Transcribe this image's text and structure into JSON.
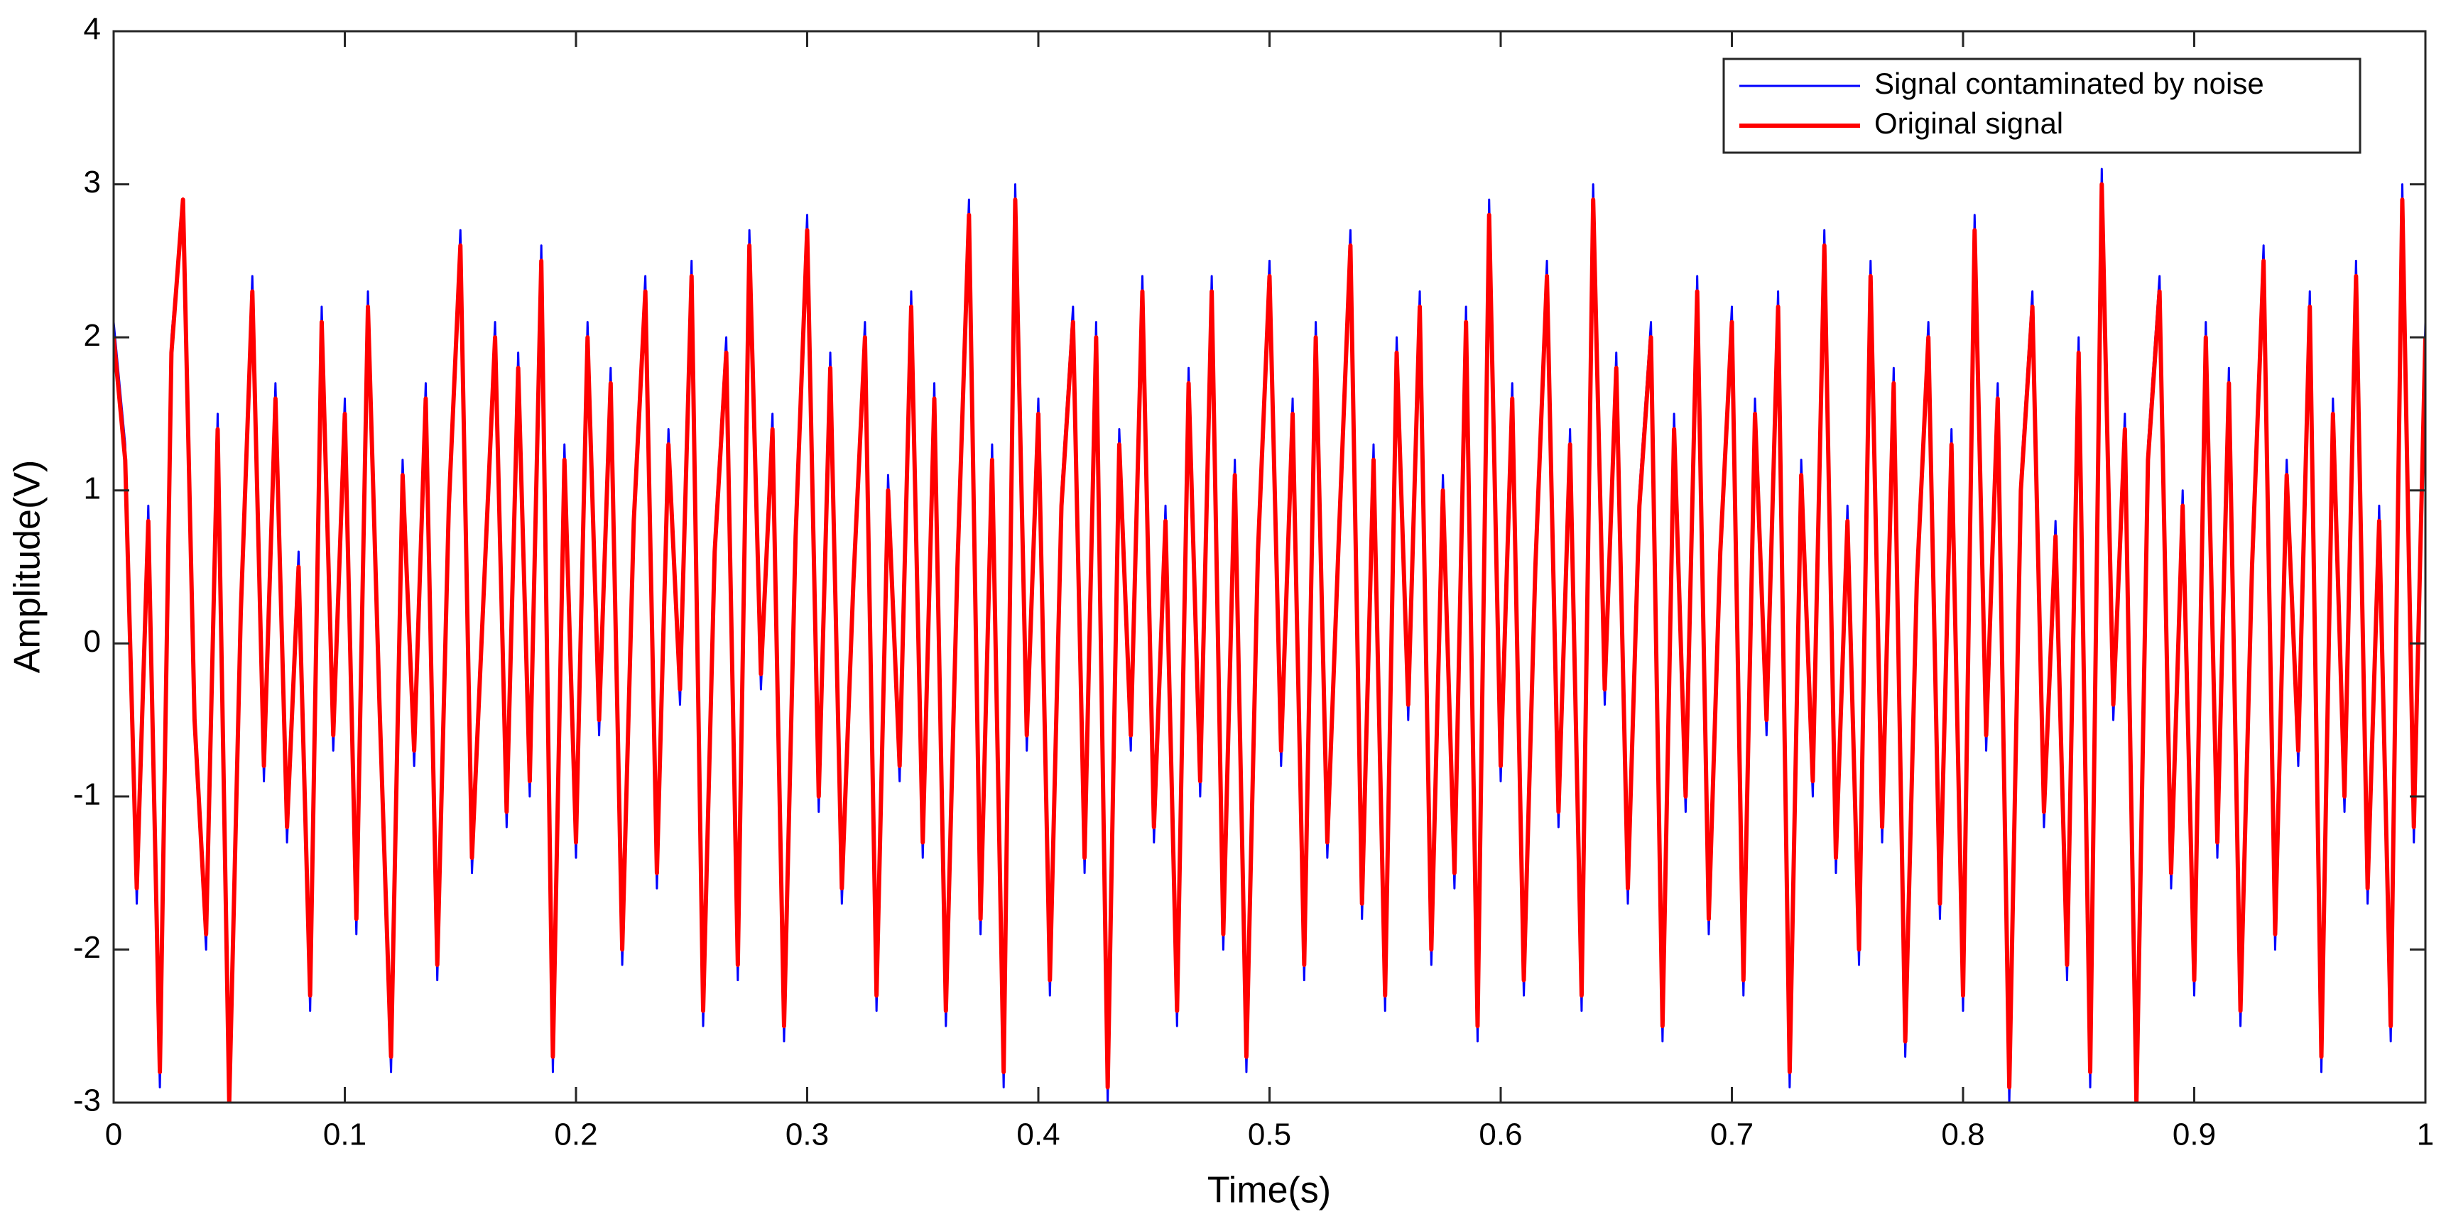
{
  "chart_data": {
    "type": "line",
    "xlabel": "Time(s)",
    "ylabel": "Amplitude(V)",
    "xlim": [
      0,
      1
    ],
    "ylim": [
      -3,
      4
    ],
    "xticks": [
      0,
      0.1,
      0.2,
      0.3,
      0.4,
      0.5,
      0.6,
      0.7,
      0.8,
      0.9,
      1
    ],
    "yticks": [
      -3,
      -2,
      -1,
      0,
      1,
      2,
      3,
      4
    ],
    "grid": false,
    "legend": "upper right",
    "x": [
      0,
      0.005,
      0.01,
      0.015,
      0.02,
      0.025,
      0.03,
      0.035,
      0.04,
      0.045,
      0.05,
      0.055,
      0.06,
      0.065,
      0.07,
      0.075,
      0.08,
      0.085,
      0.09,
      0.095,
      0.1,
      0.105,
      0.11,
      0.115,
      0.12,
      0.125,
      0.13,
      0.135,
      0.14,
      0.145,
      0.15,
      0.155,
      0.16,
      0.165,
      0.17,
      0.175,
      0.18,
      0.185,
      0.19,
      0.195,
      0.2,
      0.205,
      0.21,
      0.215,
      0.22,
      0.225,
      0.23,
      0.235,
      0.24,
      0.245,
      0.25,
      0.255,
      0.26,
      0.265,
      0.27,
      0.275,
      0.28,
      0.285,
      0.29,
      0.295,
      0.3,
      0.305,
      0.31,
      0.315,
      0.32,
      0.325,
      0.33,
      0.335,
      0.34,
      0.345,
      0.35,
      0.355,
      0.36,
      0.365,
      0.37,
      0.375,
      0.38,
      0.385,
      0.39,
      0.395,
      0.4,
      0.405,
      0.41,
      0.415,
      0.42,
      0.425,
      0.43,
      0.435,
      0.44,
      0.445,
      0.45,
      0.455,
      0.46,
      0.465,
      0.47,
      0.475,
      0.48,
      0.485,
      0.49,
      0.495,
      0.5,
      0.505,
      0.51,
      0.515,
      0.52,
      0.525,
      0.53,
      0.535,
      0.54,
      0.545,
      0.55,
      0.555,
      0.56,
      0.565,
      0.57,
      0.575,
      0.58,
      0.585,
      0.59,
      0.595,
      0.6,
      0.605,
      0.61,
      0.615,
      0.62,
      0.625,
      0.63,
      0.635,
      0.64,
      0.645,
      0.65,
      0.655,
      0.66,
      0.665,
      0.67,
      0.675,
      0.68,
      0.685,
      0.69,
      0.695,
      0.7,
      0.705,
      0.71,
      0.715,
      0.72,
      0.725,
      0.73,
      0.735,
      0.74,
      0.745,
      0.75,
      0.755,
      0.76,
      0.765,
      0.77,
      0.775,
      0.78,
      0.785,
      0.79,
      0.795,
      0.8,
      0.805,
      0.81,
      0.815,
      0.82,
      0.825,
      0.83,
      0.835,
      0.84,
      0.845,
      0.85,
      0.855,
      0.86,
      0.865,
      0.87,
      0.875,
      0.88,
      0.885,
      0.89,
      0.895,
      0.9,
      0.905,
      0.91,
      0.915,
      0.92,
      0.925,
      0.93,
      0.935,
      0.94,
      0.945,
      0.95,
      0.955,
      0.96,
      0.965,
      0.97,
      0.975,
      0.98,
      0.985,
      0.99,
      0.995,
      1
    ],
    "series": [
      {
        "name": "Signal contaminated by noise",
        "color": "#0000ff",
        "values": [
          2.1,
          1.3,
          -1.7,
          0.9,
          -2.9,
          2.0,
          2.9,
          -0.6,
          -2.0,
          1.5,
          -3.0,
          0.3,
          2.4,
          -0.9,
          1.7,
          -1.3,
          0.6,
          -2.4,
          2.2,
          -0.7,
          1.6,
          -1.9,
          2.3,
          -0.5,
          -2.8,
          1.2,
          -0.8,
          1.7,
          -2.2,
          1.0,
          2.7,
          -1.5,
          0.4,
          2.1,
          -1.2,
          1.9,
          -1.0,
          2.6,
          -2.8,
          1.3,
          -1.4,
          2.1,
          -0.6,
          1.8,
          -2.1,
          0.9,
          2.4,
          -1.6,
          1.4,
          -0.4,
          2.5,
          -2.5,
          0.7,
          2.0,
          -2.2,
          2.7,
          -0.3,
          1.5,
          -2.6,
          0.8,
          2.8,
          -1.1,
          1.9,
          -1.7,
          0.5,
          2.1,
          -2.4,
          1.1,
          -0.9,
          2.3,
          -1.4,
          1.7,
          -2.5,
          0.6,
          2.9,
          -1.9,
          1.3,
          -2.9,
          3.0,
          -0.7,
          1.6,
          -2.3,
          1.0,
          2.2,
          -1.5,
          2.1,
          -3.0,
          1.4,
          -0.7,
          2.4,
          -1.3,
          0.9,
          -2.5,
          1.8,
          -1.0,
          2.4,
          -2.0,
          1.2,
          -2.8,
          0.7,
          2.5,
          -0.8,
          1.6,
          -2.2,
          2.1,
          -1.4,
          0.8,
          2.7,
          -1.8,
          1.3,
          -2.4,
          2.0,
          -0.5,
          2.3,
          -2.1,
          1.1,
          -1.6,
          2.2,
          -2.6,
          2.9,
          -0.9,
          1.7,
          -2.3,
          0.6,
          2.5,
          -1.2,
          1.4,
          -2.4,
          3.0,
          -0.4,
          1.9,
          -1.7,
          1.0,
          2.1,
          -2.6,
          1.5,
          -1.1,
          2.4,
          -1.9,
          0.7,
          2.2,
          -2.3,
          1.6,
          -0.6,
          2.3,
          -2.9,
          1.2,
          -1.0,
          2.7,
          -1.5,
          0.9,
          -2.1,
          2.5,
          -1.3,
          1.8,
          -2.7,
          0.5,
          2.1,
          -1.8,
          1.4,
          -2.4,
          2.8,
          -0.7,
          1.7,
          -3.0,
          1.1,
          2.3,
          -1.2,
          0.8,
          -2.2,
          2.0,
          -2.9,
          3.1,
          -0.5,
          1.5,
          -3.0,
          1.3,
          2.4,
          -1.6,
          1.0,
          -2.3,
          2.1,
          -1.4,
          1.8,
          -2.5,
          0.6,
          2.6,
          -2.0,
          1.2,
          -0.8,
          2.3,
          -2.8,
          1.6,
          -1.1,
          2.5,
          -1.7,
          0.9,
          -2.6,
          3.0,
          -1.3,
          2.1
        ]
      },
      {
        "name": "Original signal",
        "color": "#ff0000",
        "values": [
          2.0,
          1.2,
          -1.6,
          0.8,
          -2.8,
          1.9,
          2.9,
          -0.5,
          -1.9,
          1.4,
          -3.0,
          0.2,
          2.3,
          -0.8,
          1.6,
          -1.2,
          0.5,
          -2.3,
          2.1,
          -0.6,
          1.5,
          -1.8,
          2.2,
          -0.4,
          -2.7,
          1.1,
          -0.7,
          1.6,
          -2.1,
          0.9,
          2.6,
          -1.4,
          0.3,
          2.0,
          -1.1,
          1.8,
          -0.9,
          2.5,
          -2.7,
          1.2,
          -1.3,
          2.0,
          -0.5,
          1.7,
          -2.0,
          0.8,
          2.3,
          -1.5,
          1.3,
          -0.3,
          2.4,
          -2.4,
          0.6,
          1.9,
          -2.1,
          2.6,
          -0.2,
          1.4,
          -2.5,
          0.7,
          2.7,
          -1.0,
          1.8,
          -1.6,
          0.4,
          2.0,
          -2.3,
          1.0,
          -0.8,
          2.2,
          -1.3,
          1.6,
          -2.4,
          0.5,
          2.8,
          -1.8,
          1.2,
          -2.8,
          2.9,
          -0.6,
          1.5,
          -2.2,
          0.9,
          2.1,
          -1.4,
          2.0,
          -2.9,
          1.3,
          -0.6,
          2.3,
          -1.2,
          0.8,
          -2.4,
          1.7,
          -0.9,
          2.3,
          -1.9,
          1.1,
          -2.7,
          0.6,
          2.4,
          -0.7,
          1.5,
          -2.1,
          2.0,
          -1.3,
          0.7,
          2.6,
          -1.7,
          1.2,
          -2.3,
          1.9,
          -0.4,
          2.2,
          -2.0,
          1.0,
          -1.5,
          2.1,
          -2.5,
          2.8,
          -0.8,
          1.6,
          -2.2,
          0.5,
          2.4,
          -1.1,
          1.3,
          -2.3,
          2.9,
          -0.3,
          1.8,
          -1.6,
          0.9,
          2.0,
          -2.5,
          1.4,
          -1.0,
          2.3,
          -1.8,
          0.6,
          2.1,
          -2.2,
          1.5,
          -0.5,
          2.2,
          -2.8,
          1.1,
          -0.9,
          2.6,
          -1.4,
          0.8,
          -2.0,
          2.4,
          -1.2,
          1.7,
          -2.6,
          0.4,
          2.0,
          -1.7,
          1.3,
          -2.3,
          2.7,
          -0.6,
          1.6,
          -2.9,
          1.0,
          2.2,
          -1.1,
          0.7,
          -2.1,
          1.9,
          -2.8,
          3.0,
          -0.4,
          1.4,
          -3.0,
          1.2,
          2.3,
          -1.5,
          0.9,
          -2.2,
          2.0,
          -1.3,
          1.7,
          -2.4,
          0.5,
          2.5,
          -1.9,
          1.1,
          -0.7,
          2.2,
          -2.7,
          1.5,
          -1.0,
          2.4,
          -1.6,
          0.8,
          -2.5,
          2.9,
          -1.2,
          2.0
        ]
      }
    ]
  }
}
